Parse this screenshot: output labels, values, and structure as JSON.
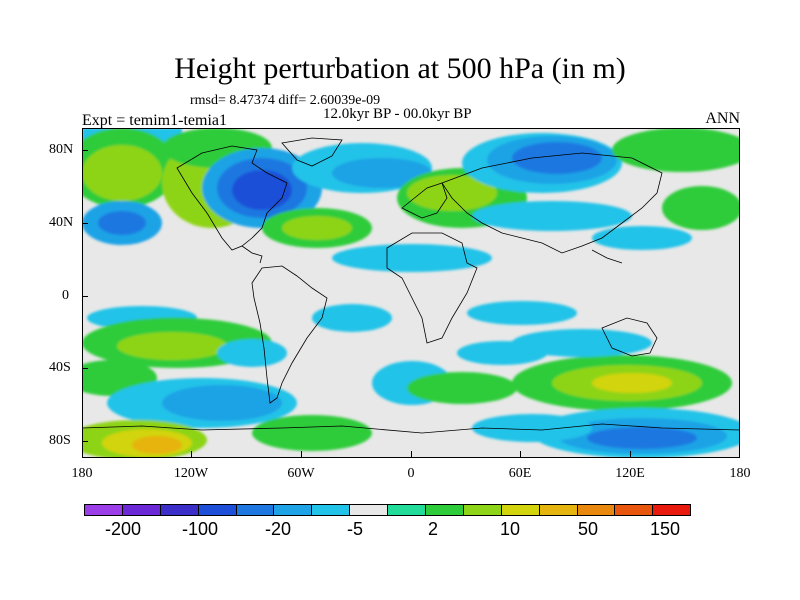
{
  "title": "Height perturbation at 500 hPa (in m)",
  "stats_line": "rmsd= 8.47374 diff= 2.60039e-09",
  "period_line": "12.0kyr BP - 00.0kyr BP",
  "experiment_label": "Expt = temim1-temia1",
  "season_label": "ANN",
  "y_ticks": [
    "80N",
    "40N",
    "0",
    "40S",
    "80S"
  ],
  "x_ticks": [
    "180",
    "120W",
    "60W",
    "0",
    "60E",
    "120E",
    "180"
  ],
  "colorbar": {
    "labels": [
      "-200",
      "-100",
      "-20",
      "-5",
      "2",
      "10",
      "50",
      "150"
    ],
    "colors": [
      "#9b3ee8",
      "#6a28d6",
      "#3c2ec9",
      "#1e4fd8",
      "#1f78e0",
      "#1ea3e6",
      "#22c3e8",
      "#e8e8e8",
      "#22dc9a",
      "#2ecc3a",
      "#8ed418",
      "#d2d40e",
      "#e6b40e",
      "#e8880e",
      "#e8560e",
      "#e81a0e"
    ]
  },
  "palette": {
    "land": "none",
    "neutral": "#e8e8e8",
    "coast": "#000000"
  }
}
